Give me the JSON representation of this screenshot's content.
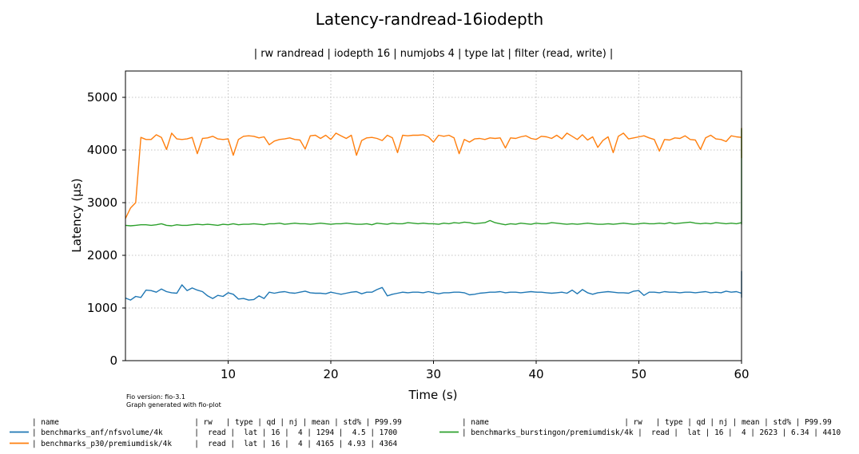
{
  "chart_data": {
    "type": "line",
    "title": "Latency-randread-16iodepth",
    "subtitle": "| rw randread | iodepth 16 | numjobs 4 | type lat | filter (read, write) |",
    "xlabel": "Time (s)",
    "ylabel": "Latency (µs)",
    "xlim": [
      0,
      60
    ],
    "ylim": [
      0,
      5500
    ],
    "xticks": [
      10,
      20,
      30,
      40,
      50,
      60
    ],
    "yticks": [
      0,
      1000,
      2000,
      3000,
      4000,
      5000
    ],
    "grid": true,
    "footer": [
      "Fio version: fio-3.1",
      "Graph generated with fio-plot"
    ],
    "legend": {
      "placement": "bottom",
      "header": "| name                              | rw   | type | qd | nj | mean | std% | P99.99"
    },
    "series": [
      {
        "name": "benchmarks_anf/nfsvolume/4k",
        "color": "#1f77b4",
        "legend_row": "| benchmarks_anf/nfsvolume/4k       |  read |  lat | 16 |  4 | 1294 |  4.5 | 1700",
        "x_start": 0,
        "x_step": 0.5,
        "values": [
          1190,
          1150,
          1220,
          1200,
          1340,
          1330,
          1300,
          1360,
          1310,
          1290,
          1280,
          1440,
          1330,
          1380,
          1340,
          1310,
          1230,
          1180,
          1240,
          1220,
          1290,
          1260,
          1170,
          1180,
          1150,
          1160,
          1230,
          1180,
          1300,
          1280,
          1300,
          1310,
          1290,
          1280,
          1300,
          1320,
          1290,
          1280,
          1280,
          1270,
          1300,
          1280,
          1260,
          1280,
          1300,
          1310,
          1270,
          1300,
          1300,
          1350,
          1390,
          1230,
          1260,
          1280,
          1300,
          1290,
          1300,
          1300,
          1290,
          1310,
          1290,
          1270,
          1290,
          1290,
          1300,
          1300,
          1290,
          1250,
          1260,
          1280,
          1290,
          1300,
          1300,
          1310,
          1290,
          1300,
          1300,
          1290,
          1300,
          1310,
          1300,
          1300,
          1290,
          1280,
          1290,
          1300,
          1280,
          1340,
          1270,
          1350,
          1290,
          1260,
          1290,
          1300,
          1310,
          1300,
          1290,
          1290,
          1280,
          1320,
          1330,
          1240,
          1300,
          1300,
          1290,
          1310,
          1300,
          1300,
          1290,
          1300,
          1300,
          1290,
          1300,
          1310,
          1290,
          1300,
          1290,
          1320,
          1300,
          1310,
          1280,
          1290,
          1300,
          1310,
          1290,
          1320,
          1310,
          1270,
          1330,
          1300,
          1200,
          1290,
          1300,
          1290,
          1310,
          1310,
          1260,
          1300,
          1290,
          1300,
          1310,
          1310,
          1300,
          1290,
          1300,
          1310,
          1310,
          1300,
          1290,
          1300,
          1300,
          1290,
          1300,
          1310,
          1300,
          1290,
          1300,
          1310,
          1310,
          1300,
          1300,
          1300,
          1310,
          1320,
          1320,
          1310,
          1280,
          1290,
          1300,
          1320,
          1310,
          1250,
          1300,
          1300,
          1320,
          1350,
          1270,
          1210,
          1290,
          1300,
          1280,
          1300,
          1310,
          1300,
          1300,
          1310,
          1300,
          1290,
          1310,
          1300,
          1310,
          1300,
          1300,
          1310,
          1300,
          1290,
          1300,
          1310,
          1300,
          1320,
          1320,
          1280,
          1300,
          1300,
          1310,
          1300,
          1300,
          1330,
          1330,
          1330,
          1310,
          1280,
          1290,
          1300,
          1320,
          1300,
          1300,
          1300,
          1310,
          1300,
          1280,
          1300,
          1290,
          1310,
          1310,
          1300,
          1310,
          1300,
          1300,
          1320,
          1320,
          1310,
          1300,
          1290,
          1310,
          1320,
          1310,
          1290,
          1300,
          1310,
          1330,
          1320,
          1300,
          1290,
          1280,
          1240,
          1300,
          1320,
          1340,
          1300,
          1250,
          1280,
          1300,
          1270,
          1290,
          1300,
          1300,
          1310,
          1700
        ]
      },
      {
        "name": "benchmarks_p30/premiumdisk/4k",
        "color": "#ff7f0e",
        "legend_row": "| benchmarks_p30/premiumdisk/4k     |  read |  lat | 16 |  4 | 4165 | 4.93 | 4364",
        "x_start": 0,
        "x_step": 0.5,
        "values": [
          2700,
          2900,
          3000,
          4240,
          4200,
          4200,
          4290,
          4240,
          4010,
          4320,
          4210,
          4200,
          4210,
          4240,
          3930,
          4220,
          4230,
          4260,
          4210,
          4200,
          4210,
          3900,
          4200,
          4260,
          4270,
          4260,
          4230,
          4250,
          4100,
          4170,
          4200,
          4210,
          4230,
          4200,
          4190,
          4020,
          4270,
          4280,
          4220,
          4280,
          4200,
          4320,
          4270,
          4220,
          4280,
          3900,
          4180,
          4230,
          4240,
          4220,
          4180,
          4280,
          4230,
          3950,
          4280,
          4270,
          4280,
          4280,
          4290,
          4250,
          4150,
          4280,
          4260,
          4280,
          4230,
          3930,
          4200,
          4150,
          4210,
          4220,
          4200,
          4230,
          4220,
          4230,
          4040,
          4230,
          4220,
          4250,
          4270,
          4220,
          4200,
          4260,
          4250,
          4220,
          4280,
          4210,
          4320,
          4260,
          4200,
          4290,
          4190,
          4250,
          4050,
          4180,
          4250,
          3950,
          4260,
          4320,
          4210,
          4230,
          4250,
          4270,
          4230,
          4200,
          3980,
          4200,
          4190,
          4230,
          4220,
          4270,
          4200,
          4190,
          4010,
          4230,
          4280,
          4210,
          4200,
          4160,
          4270,
          4250,
          4240,
          4020,
          4230,
          4190,
          4240,
          4240,
          4220,
          4210,
          4120,
          3980,
          4260,
          4250,
          4240,
          4230,
          4190,
          4250,
          4040,
          4180,
          4250,
          4230,
          4180,
          4190,
          4210,
          4270,
          4250,
          4010,
          4200,
          4280,
          4300,
          4290,
          4240,
          4220,
          3980,
          4280,
          4300,
          4320,
          4310,
          4210,
          3930,
          4230,
          4300,
          4290,
          4250,
          4200,
          4230,
          4200,
          4190,
          4180,
          4190,
          3850,
          4240,
          4210,
          4200,
          4240,
          4230,
          4220,
          4250,
          4280,
          3990,
          4320,
          4210,
          4230,
          4200,
          4240,
          4100,
          4190,
          4160,
          4230,
          4250,
          4240,
          4210,
          4210,
          4260,
          4140,
          4200,
          4190,
          4280,
          4350,
          4270,
          4250,
          4230,
          4010,
          4000,
          4010,
          4080,
          4160,
          4200,
          4240,
          4250,
          4280,
          4300,
          4270,
          4190,
          4220,
          4240,
          4200,
          4260,
          4300,
          4360,
          4320,
          4250,
          4230,
          4200,
          4180,
          4220,
          4180,
          4250,
          4190,
          4100,
          4180,
          4200,
          4220,
          4250,
          4230,
          4260,
          4280,
          4270,
          4260,
          4200,
          4210,
          4220,
          4260,
          4240,
          4230,
          4250,
          4230,
          4210,
          4240,
          4260,
          4270,
          4280,
          4290,
          4300,
          4310,
          4420
        ]
      },
      {
        "name": "benchmarks_burstingon/premiumdisk/4k",
        "color": "#2ca02c",
        "legend_row": "| benchmarks_burstingon/premiumdisk/4k |  read |  lat | 16 |  4 | 2623 | 6.34 | 4410",
        "x_start": 0,
        "x_step": 0.5,
        "values": [
          2570,
          2560,
          2570,
          2580,
          2580,
          2570,
          2580,
          2600,
          2570,
          2560,
          2580,
          2570,
          2570,
          2580,
          2590,
          2580,
          2590,
          2580,
          2570,
          2590,
          2580,
          2600,
          2580,
          2590,
          2590,
          2600,
          2590,
          2580,
          2600,
          2600,
          2610,
          2590,
          2600,
          2610,
          2600,
          2600,
          2590,
          2600,
          2610,
          2600,
          2590,
          2600,
          2600,
          2610,
          2600,
          2590,
          2590,
          2600,
          2580,
          2610,
          2600,
          2590,
          2610,
          2600,
          2600,
          2620,
          2610,
          2600,
          2610,
          2600,
          2600,
          2590,
          2610,
          2600,
          2620,
          2610,
          2630,
          2620,
          2600,
          2610,
          2620,
          2660,
          2620,
          2600,
          2580,
          2600,
          2590,
          2610,
          2600,
          2590,
          2610,
          2600,
          2600,
          2620,
          2610,
          2600,
          2590,
          2600,
          2590,
          2600,
          2610,
          2600,
          2590,
          2590,
          2600,
          2590,
          2600,
          2610,
          2600,
          2590,
          2600,
          2610,
          2600,
          2600,
          2610,
          2600,
          2620,
          2600,
          2610,
          2620,
          2630,
          2610,
          2600,
          2610,
          2600,
          2620,
          2610,
          2600,
          2610,
          2600,
          2620,
          2600,
          2590,
          2600,
          2610,
          2600,
          2600,
          2610,
          2600,
          2600,
          2590,
          2610,
          2600,
          2610,
          2620,
          2600,
          2620,
          2610,
          2600,
          2600,
          2620,
          2630,
          2620,
          2640,
          2620,
          2630,
          2640,
          2630,
          2640,
          2640,
          2650,
          2640,
          2620,
          2610,
          2640,
          2620,
          2610,
          2620,
          2630,
          2620,
          2630,
          2630,
          2630,
          2620,
          2610,
          2620,
          2630,
          2620,
          2630,
          2620,
          2610,
          2630,
          2620,
          2620,
          2640,
          2660,
          2620,
          2630,
          2610,
          2620,
          2630,
          2620,
          2610,
          2610,
          2620,
          2630,
          2620,
          2620,
          2610,
          2620,
          2630,
          2620,
          2620,
          2630,
          2640,
          2620,
          2630,
          2620,
          2620,
          2630,
          2620,
          2610,
          2610,
          2620,
          2630,
          2620,
          2620,
          2610,
          2620,
          2630,
          2630,
          2640,
          2620,
          2650,
          2630,
          2640,
          2620,
          2630,
          2620,
          2630,
          2630,
          2620,
          2640,
          2620,
          2630,
          2620,
          2640,
          2650,
          2630,
          2620,
          2640,
          2650,
          2630,
          2620,
          2630,
          2660,
          2620,
          2630,
          2620,
          2630,
          2620,
          2640,
          2640,
          2630,
          2620,
          2650,
          2640,
          2660,
          2630,
          2620,
          2640,
          2650,
          2630,
          2640,
          2620,
          2640,
          2650,
          2640,
          2630,
          2650,
          2660,
          2640,
          2650,
          4410
        ]
      }
    ]
  }
}
